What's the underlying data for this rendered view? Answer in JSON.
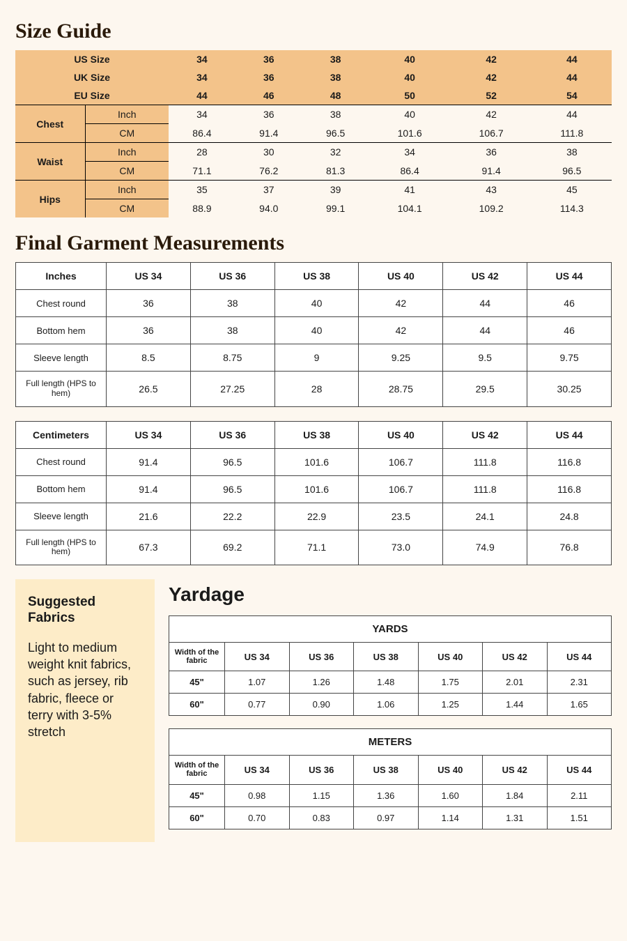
{
  "headings": {
    "size_guide": "Size Guide",
    "final_garment": "Final Garment Measurements",
    "yardage": "Yardage",
    "suggested_fabrics": "Suggested Fabrics"
  },
  "colors": {
    "page_bg": "#fdf7ef",
    "accent_bg": "#f3c38a",
    "fabrics_bg": "#fdecc8",
    "table_bg": "#ffffff",
    "border": "#444444",
    "text": "#1a1a1a"
  },
  "size_guide": {
    "size_rows": [
      {
        "label": "US Size",
        "values": [
          "34",
          "36",
          "38",
          "40",
          "42",
          "44"
        ]
      },
      {
        "label": "UK Size",
        "values": [
          "34",
          "36",
          "38",
          "40",
          "42",
          "44"
        ]
      },
      {
        "label": "EU Size",
        "values": [
          "44",
          "46",
          "48",
          "50",
          "52",
          "54"
        ]
      }
    ],
    "body_rows": [
      {
        "label": "Chest",
        "inch": [
          "34",
          "36",
          "38",
          "40",
          "42",
          "44"
        ],
        "cm": [
          "86.4",
          "91.4",
          "96.5",
          "101.6",
          "106.7",
          "111.8"
        ]
      },
      {
        "label": "Waist",
        "inch": [
          "28",
          "30",
          "32",
          "34",
          "36",
          "38"
        ],
        "cm": [
          "71.1",
          "76.2",
          "81.3",
          "86.4",
          "91.4",
          "96.5"
        ]
      },
      {
        "label": "Hips",
        "inch": [
          "35",
          "37",
          "39",
          "41",
          "43",
          "45"
        ],
        "cm": [
          "88.9",
          "94.0",
          "99.1",
          "104.1",
          "109.2",
          "114.3"
        ]
      }
    ],
    "unit_labels": {
      "inch": "Inch",
      "cm": "CM"
    }
  },
  "final_garment": {
    "size_cols": [
      "US 34",
      "US 36",
      "US 38",
      "US  40",
      "US 42",
      "US 44"
    ],
    "tables": [
      {
        "unit_label": "Inches",
        "rows": [
          {
            "label": "Chest round",
            "values": [
              "36",
              "38",
              "40",
              "42",
              "44",
              "46"
            ]
          },
          {
            "label": "Bottom hem",
            "values": [
              "36",
              "38",
              "40",
              "42",
              "44",
              "46"
            ]
          },
          {
            "label": "Sleeve length",
            "values": [
              "8.5",
              "8.75",
              "9",
              "9.25",
              "9.5",
              "9.75"
            ]
          },
          {
            "label": "Full length (HPS to hem)",
            "values": [
              "26.5",
              "27.25",
              "28",
              "28.75",
              "29.5",
              "30.25"
            ],
            "small": true
          }
        ]
      },
      {
        "unit_label": "Centimeters",
        "rows": [
          {
            "label": "Chest round",
            "values": [
              "91.4",
              "96.5",
              "101.6",
              "106.7",
              "111.8",
              "116.8"
            ]
          },
          {
            "label": "Bottom hem",
            "values": [
              "91.4",
              "96.5",
              "101.6",
              "106.7",
              "111.8",
              "116.8"
            ]
          },
          {
            "label": "Sleeve length",
            "values": [
              "21.6",
              "22.2",
              "22.9",
              "23.5",
              "24.1",
              "24.8"
            ]
          },
          {
            "label": "Full length (HPS to hem)",
            "values": [
              "67.3",
              "69.2",
              "71.1",
              "73.0",
              "74.9",
              "76.8"
            ],
            "small": true
          }
        ]
      }
    ]
  },
  "fabrics": {
    "text": "Light to medium weight knit fabrics, such as jersey, rib fabric, fleece or terry with 3-5% stretch"
  },
  "yardage": {
    "size_cols": [
      "US 34",
      "US 36",
      "US 38",
      "US  40",
      "US 42",
      "US 44"
    ],
    "width_label": "Width of the fabric",
    "tables": [
      {
        "unit_label": "YARDS",
        "rows": [
          {
            "label": "45\"",
            "values": [
              "1.07",
              "1.26",
              "1.48",
              "1.75",
              "2.01",
              "2.31"
            ]
          },
          {
            "label": "60\"",
            "values": [
              "0.77",
              "0.90",
              "1.06",
              "1.25",
              "1.44",
              "1.65"
            ]
          }
        ]
      },
      {
        "unit_label": "METERS",
        "rows": [
          {
            "label": "45\"",
            "values": [
              "0.98",
              "1.15",
              "1.36",
              "1.60",
              "1.84",
              "2.11"
            ]
          },
          {
            "label": "60\"",
            "values": [
              "0.70",
              "0.83",
              "0.97",
              "1.14",
              "1.31",
              "1.51"
            ]
          }
        ]
      }
    ]
  }
}
